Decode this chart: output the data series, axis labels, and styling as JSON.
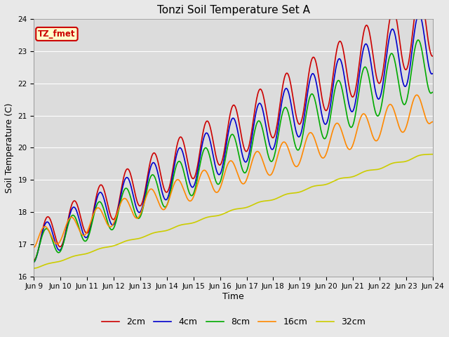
{
  "title": "Tonzi Soil Temperature Set A",
  "xlabel": "Time",
  "ylabel": "Soil Temperature (C)",
  "xlim": [
    0,
    360
  ],
  "ylim": [
    16.0,
    24.0
  ],
  "yticks": [
    16.0,
    17.0,
    18.0,
    19.0,
    20.0,
    21.0,
    22.0,
    23.0,
    24.0
  ],
  "xtick_labels": [
    "Jun 9",
    "Jun 10",
    "Jun 11",
    "Jun 12",
    "Jun 13",
    "Jun 14",
    "Jun 15",
    "Jun 16",
    "Jun 17",
    "Jun 18",
    "Jun 19",
    "Jun 20",
    "Jun 21",
    "Jun 22",
    "Jun 23",
    "Jun 24"
  ],
  "xtick_positions": [
    0,
    24,
    48,
    72,
    96,
    120,
    144,
    168,
    192,
    216,
    240,
    264,
    288,
    312,
    336,
    360
  ],
  "legend_labels": [
    "2cm",
    "4cm",
    "8cm",
    "16cm",
    "32cm"
  ],
  "line_colors": [
    "#cc0000",
    "#0000cc",
    "#00aa00",
    "#ff8800",
    "#cccc00"
  ],
  "line_widths": [
    1.2,
    1.2,
    1.2,
    1.2,
    1.2
  ],
  "annotation_text": "TZ_fmet",
  "annotation_color": "#cc0000",
  "annotation_bg": "#ffffcc",
  "fig_bg_color": "#e8e8e8",
  "plot_bg_color": "#dcdcdc",
  "num_points": 721,
  "period_hours": 24,
  "series": [
    {
      "trend_start": 17.05,
      "trend_end": 23.95,
      "amp_start": 0.55,
      "amp_end": 1.1,
      "phase": 0.0,
      "smooth": 0
    },
    {
      "trend_start": 16.95,
      "trend_end": 23.35,
      "amp_start": 0.52,
      "amp_end": 1.05,
      "phase": 0.15,
      "smooth": 1
    },
    {
      "trend_start": 16.85,
      "trend_end": 22.65,
      "amp_start": 0.45,
      "amp_end": 0.95,
      "phase": 0.35,
      "smooth": 2
    },
    {
      "trend_start": 17.1,
      "trend_end": 21.3,
      "amp_start": 0.35,
      "amp_end": 0.55,
      "phase": 0.7,
      "smooth": 4
    },
    {
      "trend_start": 16.25,
      "trend_end": 19.85,
      "amp_start": 0.02,
      "amp_end": 0.04,
      "phase": 0.0,
      "smooth": 8
    }
  ]
}
